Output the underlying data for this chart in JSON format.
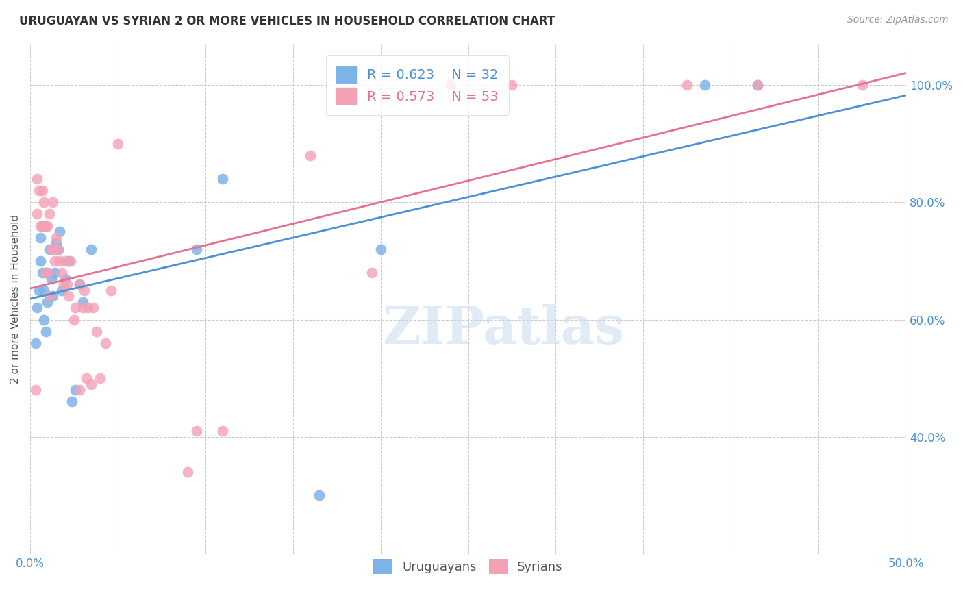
{
  "title": "URUGUAYAN VS SYRIAN 2 OR MORE VEHICLES IN HOUSEHOLD CORRELATION CHART",
  "source": "Source: ZipAtlas.com",
  "ylabel": "2 or more Vehicles in Household",
  "xlim": [
    0.0,
    0.5
  ],
  "ylim": [
    0.2,
    1.07
  ],
  "x_ticks": [
    0.0,
    0.05,
    0.1,
    0.15,
    0.2,
    0.25,
    0.3,
    0.35,
    0.4,
    0.45,
    0.5
  ],
  "x_tick_labels": [
    "0.0%",
    "",
    "",
    "",
    "",
    "",
    "",
    "",
    "",
    "",
    "50.0%"
  ],
  "y_ticks": [
    0.4,
    0.6,
    0.8,
    1.0
  ],
  "y_tick_labels": [
    "40.0%",
    "60.0%",
    "80.0%",
    "100.0%"
  ],
  "uruguayan_R": 0.623,
  "uruguayan_N": 32,
  "syrian_R": 0.573,
  "syrian_N": 53,
  "uruguayan_color": "#7EB3E8",
  "syrian_color": "#F4A0B5",
  "uruguayan_line_color": "#4A90D9",
  "syrian_line_color": "#E8708A",
  "background_color": "#ffffff",
  "grid_color": "#cccccc",
  "uruguayan_x": [
    0.003,
    0.004,
    0.005,
    0.006,
    0.006,
    0.007,
    0.008,
    0.008,
    0.009,
    0.01,
    0.01,
    0.011,
    0.012,
    0.013,
    0.014,
    0.015,
    0.016,
    0.017,
    0.018,
    0.02,
    0.022,
    0.024,
    0.026,
    0.028,
    0.03,
    0.035,
    0.095,
    0.11,
    0.165,
    0.2,
    0.385,
    0.415
  ],
  "uruguayan_y": [
    0.56,
    0.62,
    0.65,
    0.7,
    0.74,
    0.68,
    0.6,
    0.65,
    0.58,
    0.68,
    0.63,
    0.72,
    0.67,
    0.64,
    0.68,
    0.73,
    0.72,
    0.75,
    0.65,
    0.67,
    0.7,
    0.46,
    0.48,
    0.66,
    0.63,
    0.72,
    0.72,
    0.84,
    0.3,
    0.72,
    1.0,
    1.0
  ],
  "syrian_x": [
    0.003,
    0.004,
    0.004,
    0.005,
    0.006,
    0.007,
    0.007,
    0.008,
    0.008,
    0.009,
    0.009,
    0.01,
    0.01,
    0.011,
    0.011,
    0.012,
    0.013,
    0.013,
    0.014,
    0.015,
    0.016,
    0.017,
    0.018,
    0.019,
    0.02,
    0.021,
    0.022,
    0.023,
    0.025,
    0.026,
    0.028,
    0.03,
    0.031,
    0.033,
    0.035,
    0.036,
    0.038,
    0.04,
    0.043,
    0.046,
    0.05,
    0.095,
    0.11,
    0.16,
    0.195,
    0.24,
    0.275,
    0.375,
    0.415,
    0.475,
    0.028,
    0.032,
    0.09
  ],
  "syrian_y": [
    0.48,
    0.84,
    0.78,
    0.82,
    0.76,
    0.82,
    0.76,
    0.8,
    0.76,
    0.76,
    0.68,
    0.68,
    0.76,
    0.78,
    0.64,
    0.72,
    0.8,
    0.72,
    0.7,
    0.74,
    0.72,
    0.7,
    0.68,
    0.66,
    0.7,
    0.66,
    0.64,
    0.7,
    0.6,
    0.62,
    0.66,
    0.62,
    0.65,
    0.62,
    0.49,
    0.62,
    0.58,
    0.5,
    0.56,
    0.65,
    0.9,
    0.41,
    0.41,
    0.88,
    0.68,
    1.0,
    1.0,
    1.0,
    1.0,
    1.0,
    0.48,
    0.5,
    0.34
  ]
}
